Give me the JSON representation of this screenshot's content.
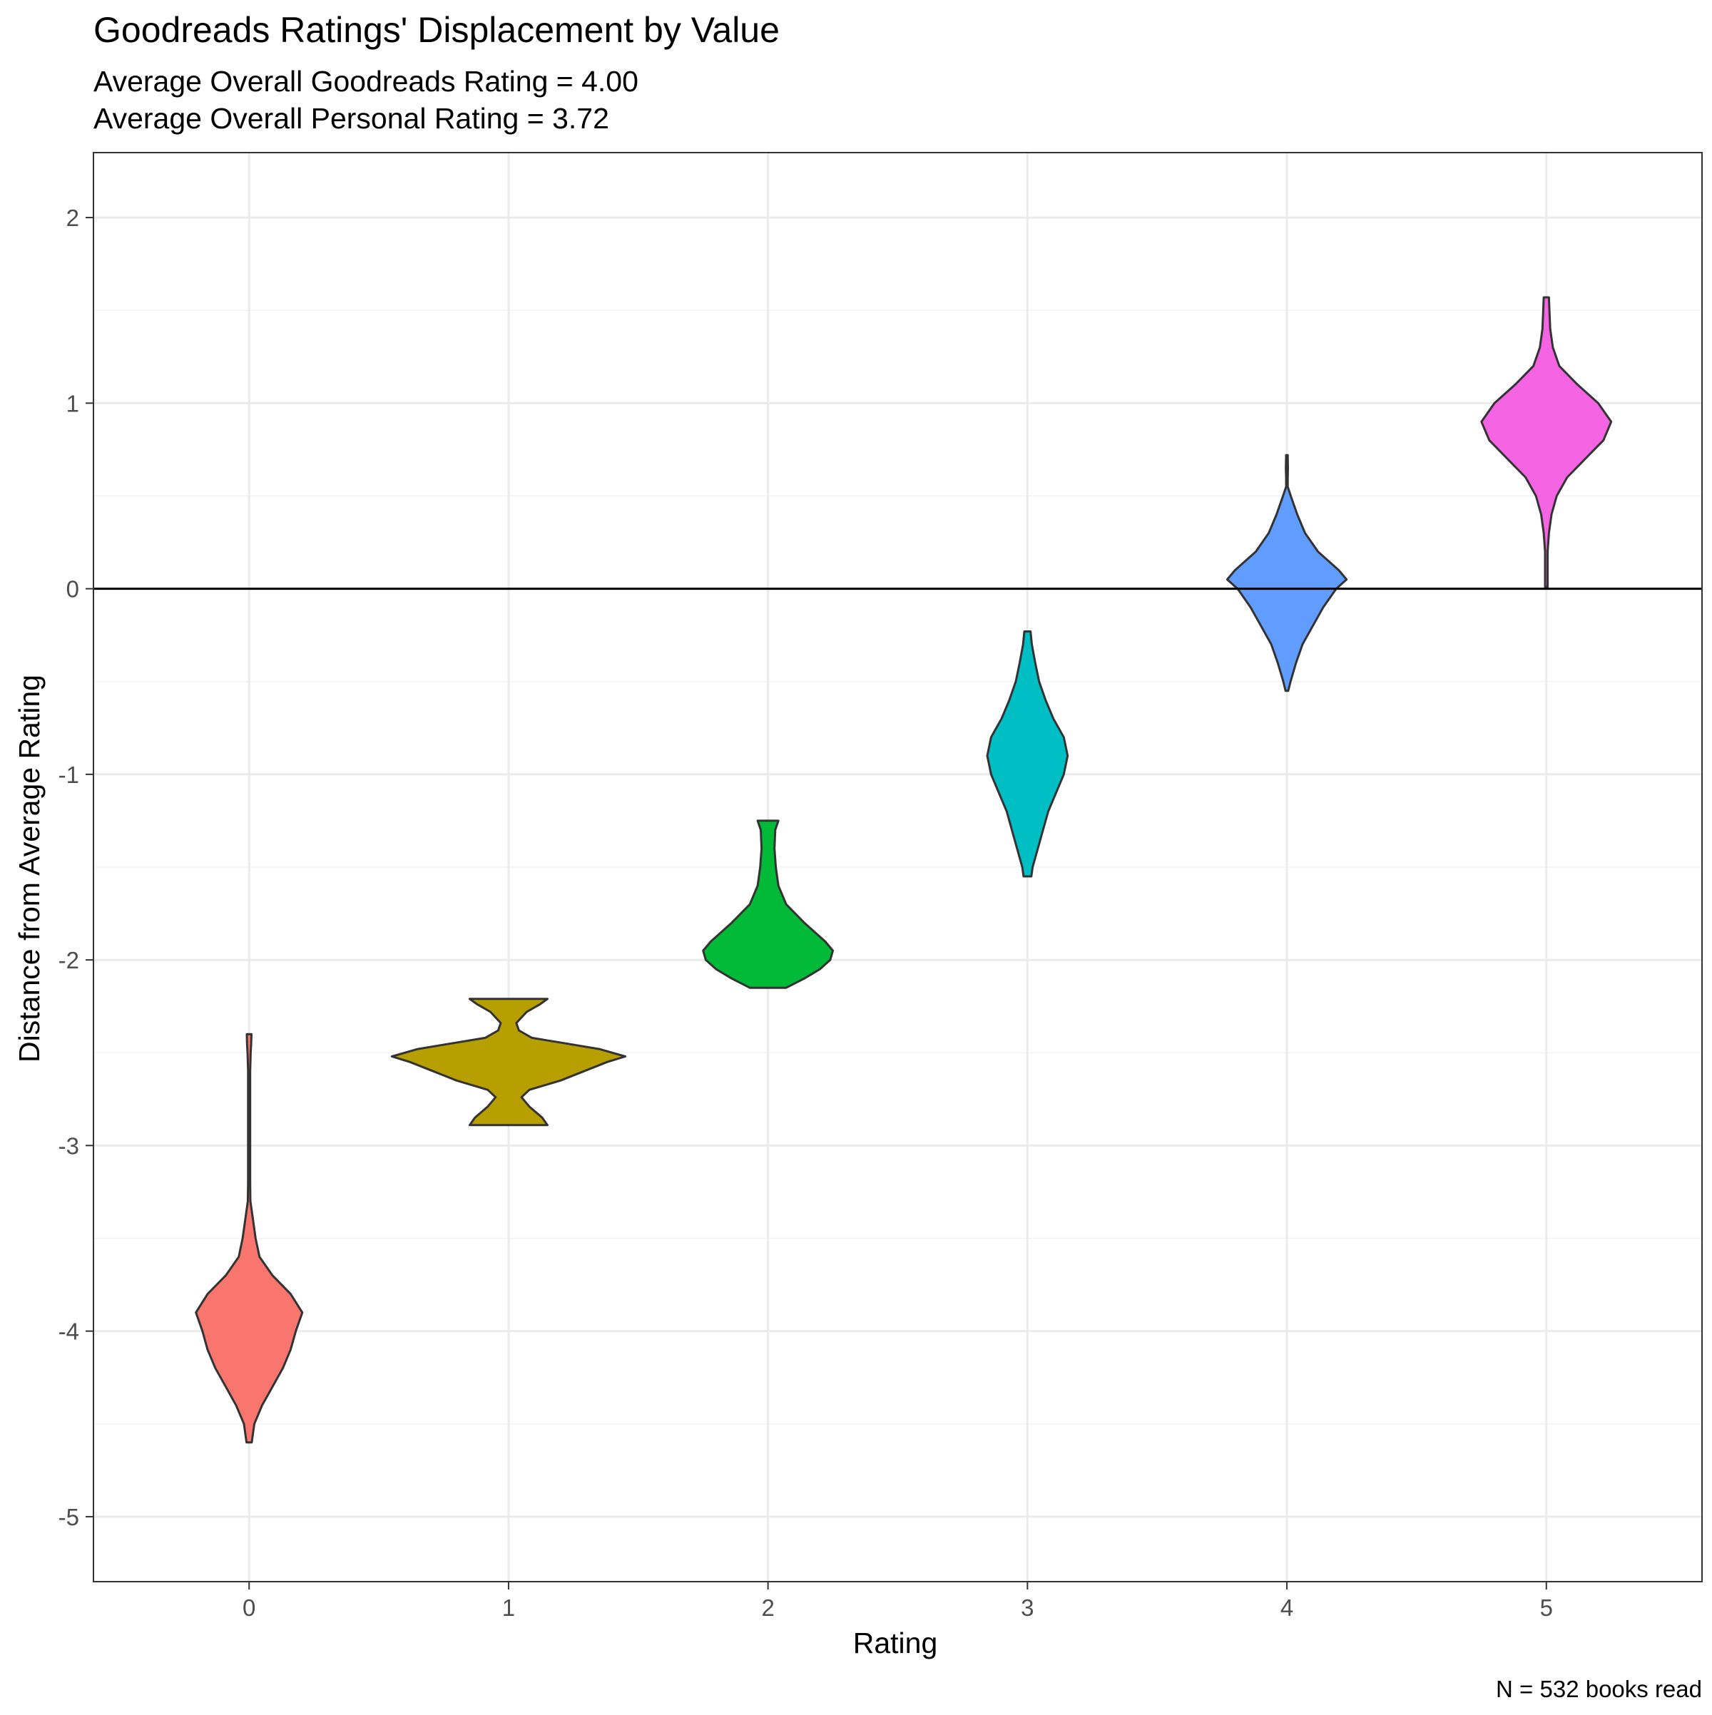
{
  "chart_data": {
    "type": "violin",
    "title": "Goodreads Ratings' Displacement by Value",
    "subtitle_lines": [
      "Average Overall Goodreads Rating = 4.00",
      "Average Overall Personal Rating = 3.72"
    ],
    "xlabel": "Rating",
    "ylabel": "Distance from Average Rating",
    "caption": "N = 532 books read",
    "categories": [
      "0",
      "1",
      "2",
      "3",
      "4",
      "5"
    ],
    "xlim": [
      -0.6,
      5.6
    ],
    "ylim": [
      -5.35,
      2.35
    ],
    "y_ticks": [
      -5,
      -4,
      -3,
      -2,
      -1,
      0,
      1,
      2
    ],
    "y_tick_labels": [
      "-5",
      "-4",
      "-3",
      "-2",
      "-1",
      "0",
      "1",
      "2"
    ],
    "hline_y": 0,
    "grid": true,
    "legend": "none",
    "violins": [
      {
        "category": "0",
        "color": "#F8766D",
        "profile": [
          [
            -4.6,
            0.01
          ],
          [
            -4.5,
            0.02
          ],
          [
            -4.4,
            0.05
          ],
          [
            -4.3,
            0.09
          ],
          [
            -4.2,
            0.13
          ],
          [
            -4.1,
            0.16
          ],
          [
            -4.0,
            0.18
          ],
          [
            -3.9,
            0.205
          ],
          [
            -3.8,
            0.16
          ],
          [
            -3.7,
            0.09
          ],
          [
            -3.6,
            0.04
          ],
          [
            -3.5,
            0.025
          ],
          [
            -3.4,
            0.015
          ],
          [
            -3.3,
            0.005
          ],
          [
            -3.2,
            0.004
          ],
          [
            -3.0,
            0.004
          ],
          [
            -2.8,
            0.004
          ],
          [
            -2.6,
            0.004
          ],
          [
            -2.5,
            0.006
          ],
          [
            -2.45,
            0.008
          ],
          [
            -2.4,
            0.009
          ]
        ]
      },
      {
        "category": "1",
        "color": "#B79F00",
        "profile": [
          [
            -2.89,
            0.15
          ],
          [
            -2.85,
            0.13
          ],
          [
            -2.79,
            0.08
          ],
          [
            -2.74,
            0.05
          ],
          [
            -2.7,
            0.08
          ],
          [
            -2.65,
            0.2
          ],
          [
            -2.6,
            0.29
          ],
          [
            -2.55,
            0.38
          ],
          [
            -2.52,
            0.45
          ],
          [
            -2.48,
            0.35
          ],
          [
            -2.45,
            0.22
          ],
          [
            -2.42,
            0.09
          ],
          [
            -2.38,
            0.04
          ],
          [
            -2.34,
            0.03
          ],
          [
            -2.28,
            0.07
          ],
          [
            -2.24,
            0.12
          ],
          [
            -2.21,
            0.15
          ]
        ]
      },
      {
        "category": "2",
        "color": "#00BA38",
        "profile": [
          [
            -2.15,
            0.07
          ],
          [
            -2.1,
            0.14
          ],
          [
            -2.05,
            0.2
          ],
          [
            -2.0,
            0.24
          ],
          [
            -1.95,
            0.25
          ],
          [
            -1.9,
            0.22
          ],
          [
            -1.8,
            0.14
          ],
          [
            -1.7,
            0.07
          ],
          [
            -1.6,
            0.04
          ],
          [
            -1.5,
            0.03
          ],
          [
            -1.4,
            0.025
          ],
          [
            -1.3,
            0.028
          ],
          [
            -1.25,
            0.04
          ]
        ]
      },
      {
        "category": "3",
        "color": "#00BFC4",
        "profile": [
          [
            -1.55,
            0.015
          ],
          [
            -1.5,
            0.02
          ],
          [
            -1.4,
            0.04
          ],
          [
            -1.3,
            0.06
          ],
          [
            -1.2,
            0.08
          ],
          [
            -1.1,
            0.11
          ],
          [
            -1.0,
            0.14
          ],
          [
            -0.9,
            0.155
          ],
          [
            -0.8,
            0.14
          ],
          [
            -0.7,
            0.1
          ],
          [
            -0.6,
            0.07
          ],
          [
            -0.5,
            0.045
          ],
          [
            -0.4,
            0.03
          ],
          [
            -0.3,
            0.017
          ],
          [
            -0.23,
            0.012
          ]
        ]
      },
      {
        "category": "4",
        "color": "#619CFF",
        "profile": [
          [
            -0.55,
            0.005
          ],
          [
            -0.5,
            0.014
          ],
          [
            -0.4,
            0.035
          ],
          [
            -0.3,
            0.06
          ],
          [
            -0.2,
            0.1
          ],
          [
            -0.1,
            0.14
          ],
          [
            0.0,
            0.19
          ],
          [
            0.05,
            0.23
          ],
          [
            0.1,
            0.2
          ],
          [
            0.2,
            0.12
          ],
          [
            0.3,
            0.07
          ],
          [
            0.4,
            0.04
          ],
          [
            0.5,
            0.015
          ],
          [
            0.55,
            0.003
          ],
          [
            0.6,
            0.003
          ],
          [
            0.65,
            0.004
          ],
          [
            0.72,
            0.003
          ]
        ]
      },
      {
        "category": "5",
        "color": "#F564E3",
        "profile": [
          [
            0.01,
            0.005
          ],
          [
            0.1,
            0.005
          ],
          [
            0.2,
            0.005
          ],
          [
            0.3,
            0.01
          ],
          [
            0.4,
            0.02
          ],
          [
            0.5,
            0.04
          ],
          [
            0.6,
            0.08
          ],
          [
            0.7,
            0.15
          ],
          [
            0.8,
            0.22
          ],
          [
            0.9,
            0.25
          ],
          [
            1.0,
            0.2
          ],
          [
            1.1,
            0.12
          ],
          [
            1.2,
            0.05
          ],
          [
            1.3,
            0.025
          ],
          [
            1.4,
            0.015
          ],
          [
            1.5,
            0.012
          ],
          [
            1.57,
            0.01
          ]
        ]
      }
    ]
  }
}
